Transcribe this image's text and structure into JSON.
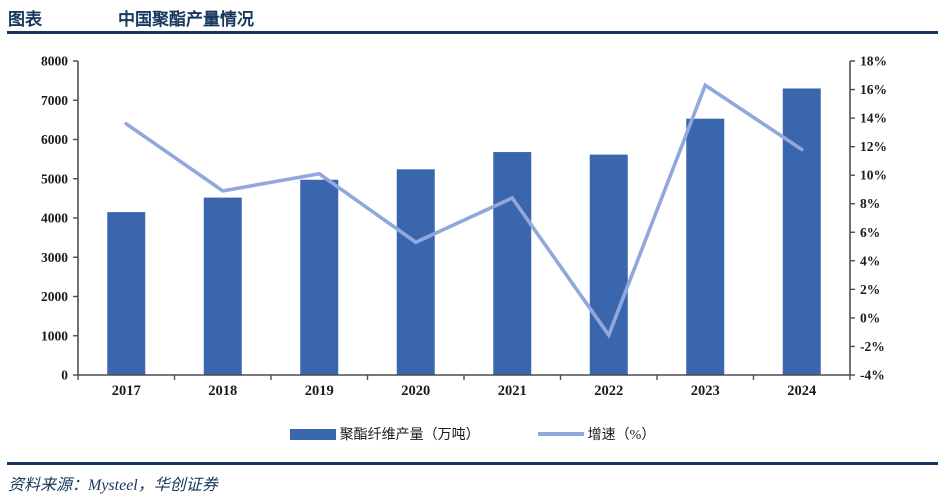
{
  "header": {
    "prefix": "图表",
    "title": "中国聚酯产量情况"
  },
  "footer": {
    "source": "资料来源：Mysteel，华创证券"
  },
  "legend": {
    "bar_label": "聚酯纤维产量（万吨）",
    "line_label": "增速（%）"
  },
  "colors": {
    "bar": "#3A66AE",
    "line": "#92A7DC",
    "navy": "#17375E",
    "axis": "#4d4d4d",
    "tick_text": "#1a1a1a"
  },
  "chart_data": {
    "type": "bar+line",
    "title": "中国聚酯产量情况",
    "categories": [
      "2017",
      "2018",
      "2019",
      "2020",
      "2021",
      "2022",
      "2023",
      "2024"
    ],
    "series": [
      {
        "name": "聚酯纤维产量（万吨）",
        "type": "bar",
        "axis": "left",
        "values": [
          4150,
          4520,
          4975,
          5240,
          5680,
          5615,
          6530,
          7300
        ]
      },
      {
        "name": "增速（%）",
        "type": "line",
        "axis": "right",
        "values": [
          13.6,
          8.9,
          10.1,
          5.3,
          8.4,
          -1.2,
          16.3,
          11.8
        ]
      }
    ],
    "left_axis": {
      "min": 0,
      "max": 8000,
      "step": 1000,
      "suffix": ""
    },
    "right_axis": {
      "min": -4,
      "max": 18,
      "step": 2,
      "suffix": "%"
    },
    "grid": false,
    "legend_position": "bottom"
  }
}
